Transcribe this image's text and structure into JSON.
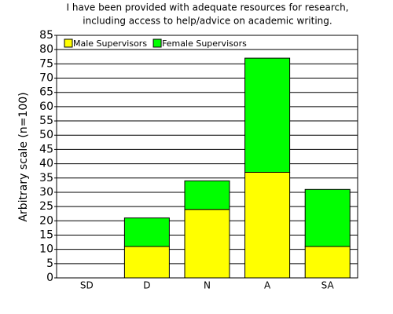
{
  "chart_data": {
    "type": "stacked_bar",
    "title": [
      "I have been provided with adequate resources for research,",
      "including access to help/advice on academic writing."
    ],
    "y_label": "Arbitrary scale (n=100)",
    "categories": [
      "SD",
      "D",
      "N",
      "A",
      "SA"
    ],
    "series": [
      {
        "name": "Male Supervisors",
        "color": "#ffff00",
        "values": [
          0,
          11,
          24,
          37,
          11
        ]
      },
      {
        "name": "Female Supervisors",
        "color": "#00ff00",
        "values": [
          0,
          10,
          10,
          40,
          20
        ]
      }
    ],
    "ylim": [
      0,
      85
    ],
    "yticks": [
      0,
      5,
      10,
      15,
      20,
      25,
      30,
      35,
      40,
      45,
      50,
      55,
      60,
      65,
      70,
      75,
      80,
      85
    ],
    "grid": true,
    "legend": "top-left"
  }
}
